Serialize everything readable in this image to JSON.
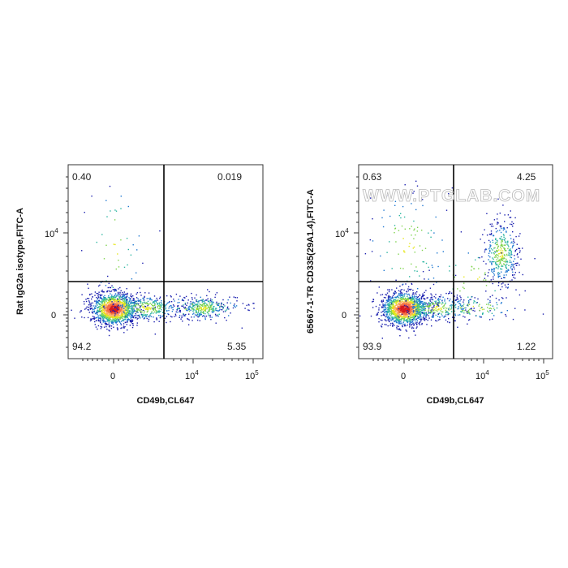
{
  "watermark": "WWW.PTGLAB.COM",
  "chart_data": [
    {
      "type": "scatter",
      "subtype": "flow-cytometry-density-plot",
      "xlabel": "CD49b,CL647",
      "ylabel": "Rat IgG2a isotype,FITC-A",
      "x_ticks": [
        {
          "base": "0",
          "exp": ""
        },
        {
          "base": "10",
          "exp": "4"
        },
        {
          "base": "10",
          "exp": "5"
        }
      ],
      "y_ticks": [
        {
          "base": "0",
          "exp": ""
        },
        {
          "base": "10",
          "exp": "4"
        }
      ],
      "quadrants": {
        "upper_left": "0.40",
        "upper_right": "0.019",
        "lower_left": "94.2",
        "lower_right": "5.35"
      },
      "populations": [
        {
          "name": "double-negative",
          "x_center": 0,
          "y_center": 0,
          "density": "high"
        },
        {
          "name": "CD49b+",
          "x_center": 16000,
          "y_center": 0,
          "density": "medium"
        }
      ]
    },
    {
      "type": "scatter",
      "subtype": "flow-cytometry-density-plot",
      "xlabel": "CD49b,CL647",
      "ylabel": "65667-1-TR CD335(29A1.4),FITC-A",
      "x_ticks": [
        {
          "base": "0",
          "exp": ""
        },
        {
          "base": "10",
          "exp": "4"
        },
        {
          "base": "10",
          "exp": "5"
        }
      ],
      "y_ticks": [
        {
          "base": "0",
          "exp": ""
        },
        {
          "base": "10",
          "exp": "4"
        }
      ],
      "quadrants": {
        "upper_left": "0.63",
        "upper_right": "4.25",
        "lower_left": "93.9",
        "lower_right": "1.22"
      },
      "populations": [
        {
          "name": "double-negative",
          "x_center": 0,
          "y_center": 0,
          "density": "high"
        },
        {
          "name": "CD49b+ CD335+",
          "x_center": 16000,
          "y_center": 10000,
          "density": "medium"
        }
      ]
    }
  ]
}
